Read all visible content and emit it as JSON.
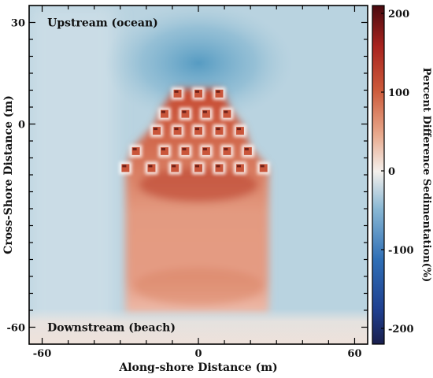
{
  "chart_data": {
    "type": "heatmap",
    "title": "",
    "xlabel": "Along-shore Distance (m)",
    "ylabel": "Cross-Shore Distance (m)",
    "xlim": [
      -65,
      65
    ],
    "ylim": [
      -65,
      35
    ],
    "xticks": [
      -60,
      0,
      60
    ],
    "xtick_labels": [
      "-60",
      "0",
      "60"
    ],
    "yticks": [
      30,
      0,
      -60
    ],
    "ytick_labels": [
      "30",
      "0",
      "-60"
    ],
    "annotations": [
      {
        "text": "Upstream (ocean)",
        "x": -58,
        "y": 30
      },
      {
        "text": "Downstream (beach)",
        "x": -58,
        "y": -60
      }
    ],
    "colorbar": {
      "label": "Percent Difference Sedimentation(%)",
      "range": [
        -220,
        210
      ],
      "ticks": [
        200,
        100,
        0,
        -100,
        -200
      ],
      "tick_labels": [
        "200",
        "100",
        "0",
        "-100",
        "-200"
      ],
      "colormap": "blue-white-red (diverging)"
    },
    "structures": {
      "description": "array of square structures, rows from upstream to downstream",
      "rows": [
        {
          "y": 9,
          "x": [
            -8,
            0,
            8
          ]
        },
        {
          "y": 3,
          "x": [
            -13,
            -5,
            3,
            11
          ]
        },
        {
          "y": -2,
          "x": [
            -16,
            -8,
            0,
            8,
            16
          ]
        },
        {
          "y": -8,
          "x": [
            -24,
            -13,
            -5,
            3,
            11,
            19
          ]
        },
        {
          "y": -13,
          "x": [
            -28,
            -18,
            -9,
            0,
            8,
            16,
            25
          ]
        }
      ]
    },
    "field": {
      "deposition_plume": {
        "x_range": [
          -28,
          27
        ],
        "y_range": [
          -56,
          -14
        ],
        "peak_value": 150,
        "value_near_beach": 60
      },
      "erosion_zone_upstream": {
        "x": 0,
        "y": 18,
        "value": -60
      },
      "background_value": -25
    }
  }
}
